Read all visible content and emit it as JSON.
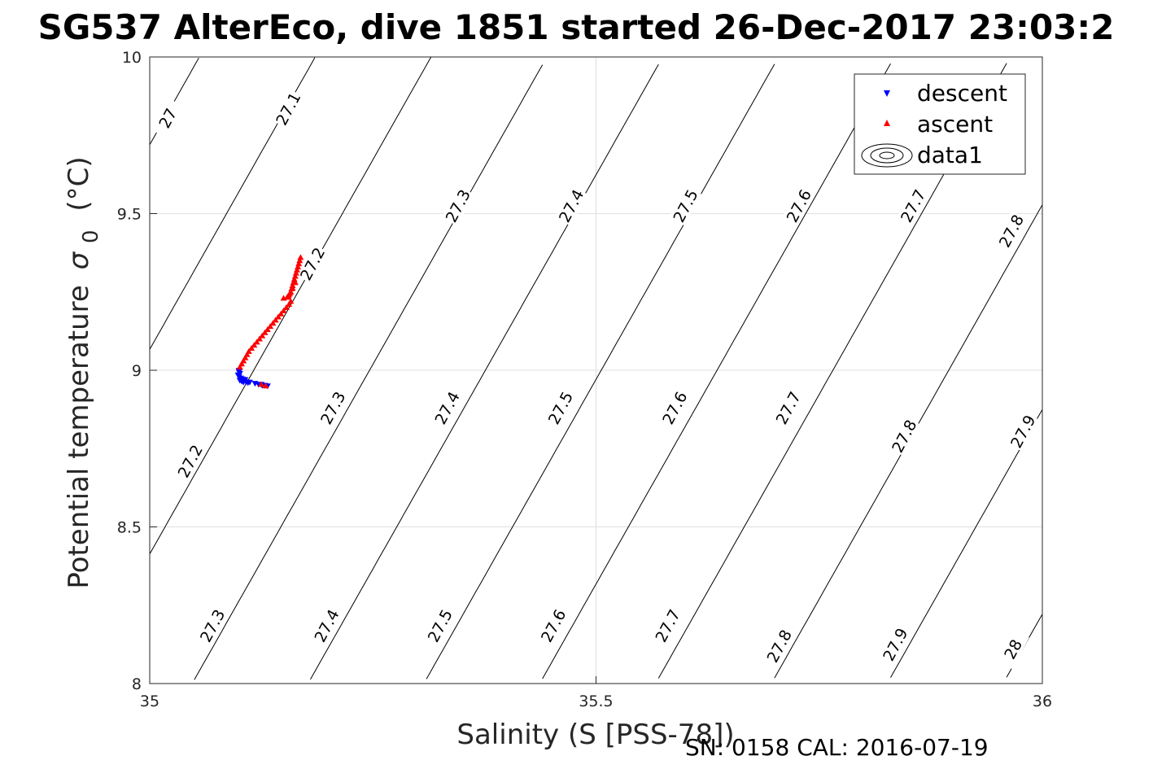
{
  "chart_data": {
    "type": "scatter",
    "title": "SG537 AlterEco, dive 1851 started 26-Dec-2017 23:03:2",
    "xlabel": "Salinity (S [PSS-78])",
    "ylabel": "Potential temperature",
    "ylabel_sub": "σ",
    "ylabel_subscript": "0",
    "ylabel_unit": "(°C)",
    "xlim": [
      35,
      36
    ],
    "ylim": [
      8,
      10
    ],
    "xticks": [
      "35",
      "35.5",
      "36"
    ],
    "yticks": [
      "8",
      "8.5",
      "9",
      "9.5",
      "10"
    ],
    "grid": true,
    "legend_position": "top-right",
    "series": [
      {
        "name": "descent",
        "marker": "triangle-down",
        "color": "#0000ff",
        "points": [
          [
            35.1,
            9.0
          ],
          [
            35.101,
            8.99
          ],
          [
            35.1,
            8.98
          ],
          [
            35.102,
            8.975
          ],
          [
            35.101,
            8.968
          ],
          [
            35.103,
            8.965
          ],
          [
            35.105,
            8.962
          ],
          [
            35.108,
            8.963
          ],
          [
            35.11,
            8.96
          ],
          [
            35.112,
            8.962
          ],
          [
            35.104,
            8.972
          ],
          [
            35.107,
            8.97
          ],
          [
            35.118,
            8.958
          ],
          [
            35.122,
            8.955
          ],
          [
            35.126,
            8.952
          ],
          [
            35.129,
            8.952
          ],
          [
            35.132,
            8.95
          ],
          [
            35.125,
            8.955
          ],
          [
            35.1,
            8.995
          ],
          [
            35.099,
            8.985
          ]
        ]
      },
      {
        "name": "ascent",
        "marker": "triangle-up",
        "color": "#ff0000",
        "points": [
          [
            35.101,
            9.01
          ],
          [
            35.103,
            9.02
          ],
          [
            35.105,
            9.03
          ],
          [
            35.107,
            9.04
          ],
          [
            35.109,
            9.05
          ],
          [
            35.111,
            9.06
          ],
          [
            35.114,
            9.07
          ],
          [
            35.117,
            9.08
          ],
          [
            35.12,
            9.09
          ],
          [
            35.123,
            9.1
          ],
          [
            35.126,
            9.11
          ],
          [
            35.129,
            9.12
          ],
          [
            35.132,
            9.13
          ],
          [
            35.135,
            9.14
          ],
          [
            35.138,
            9.15
          ],
          [
            35.141,
            9.16
          ],
          [
            35.144,
            9.17
          ],
          [
            35.147,
            9.18
          ],
          [
            35.15,
            9.19
          ],
          [
            35.153,
            9.2
          ],
          [
            35.156,
            9.21
          ],
          [
            35.158,
            9.22
          ],
          [
            35.15,
            9.23
          ],
          [
            35.154,
            9.233
          ],
          [
            35.155,
            9.236
          ],
          [
            35.156,
            9.24
          ],
          [
            35.157,
            9.245
          ],
          [
            35.158,
            9.25
          ],
          [
            35.159,
            9.26
          ],
          [
            35.16,
            9.27
          ],
          [
            35.161,
            9.28
          ],
          [
            35.162,
            9.29
          ],
          [
            35.163,
            9.3
          ],
          [
            35.164,
            9.31
          ],
          [
            35.165,
            9.32
          ],
          [
            35.166,
            9.33
          ],
          [
            35.167,
            9.34
          ],
          [
            35.168,
            9.35
          ],
          [
            35.169,
            9.36
          ],
          [
            35.163,
            9.28
          ],
          [
            35.16,
            9.262
          ],
          [
            35.13,
            8.95
          ],
          [
            35.125,
            8.955
          ]
        ]
      }
    ],
    "contour_legend": "data1",
    "contour_levels": [
      27,
      27.1,
      27.2,
      27.3,
      27.4,
      27.5,
      27.6,
      27.7,
      27.8,
      27.9,
      28
    ],
    "contour_labels": [
      {
        "text": "27",
        "x": 35.02,
        "y": 9.805
      },
      {
        "text": "27.1",
        "x": 35.155,
        "y": 9.835
      },
      {
        "text": "27.2",
        "x": 35.182,
        "y": 9.34
      },
      {
        "text": "27.2",
        "x": 35.045,
        "y": 8.71
      },
      {
        "text": "27.3",
        "x": 35.345,
        "y": 9.525
      },
      {
        "text": "27.3",
        "x": 35.205,
        "y": 8.88
      },
      {
        "text": "27.3",
        "x": 35.07,
        "y": 8.185
      },
      {
        "text": "27.4",
        "x": 35.472,
        "y": 9.525
      },
      {
        "text": "27.4",
        "x": 35.333,
        "y": 8.88
      },
      {
        "text": "27.4",
        "x": 35.198,
        "y": 8.185
      },
      {
        "text": "27.5",
        "x": 35.6,
        "y": 9.525
      },
      {
        "text": "27.5",
        "x": 35.46,
        "y": 8.88
      },
      {
        "text": "27.5",
        "x": 35.325,
        "y": 8.185
      },
      {
        "text": "27.6",
        "x": 35.727,
        "y": 9.525
      },
      {
        "text": "27.6",
        "x": 35.588,
        "y": 8.88
      },
      {
        "text": "27.6",
        "x": 35.452,
        "y": 8.185
      },
      {
        "text": "27.7",
        "x": 35.855,
        "y": 9.525
      },
      {
        "text": "27.7",
        "x": 35.715,
        "y": 8.88
      },
      {
        "text": "27.7",
        "x": 35.58,
        "y": 8.185
      },
      {
        "text": "27.8",
        "x": 35.965,
        "y": 9.445
      },
      {
        "text": "27.8",
        "x": 35.845,
        "y": 8.79
      },
      {
        "text": "27.8",
        "x": 35.705,
        "y": 8.12
      },
      {
        "text": "27.9",
        "x": 35.978,
        "y": 8.805
      },
      {
        "text": "27.9",
        "x": 35.835,
        "y": 8.125
      },
      {
        "text": "28",
        "x": 35.967,
        "y": 8.11
      }
    ],
    "footer": "SN: 0158  CAL: 2016-07-19"
  }
}
